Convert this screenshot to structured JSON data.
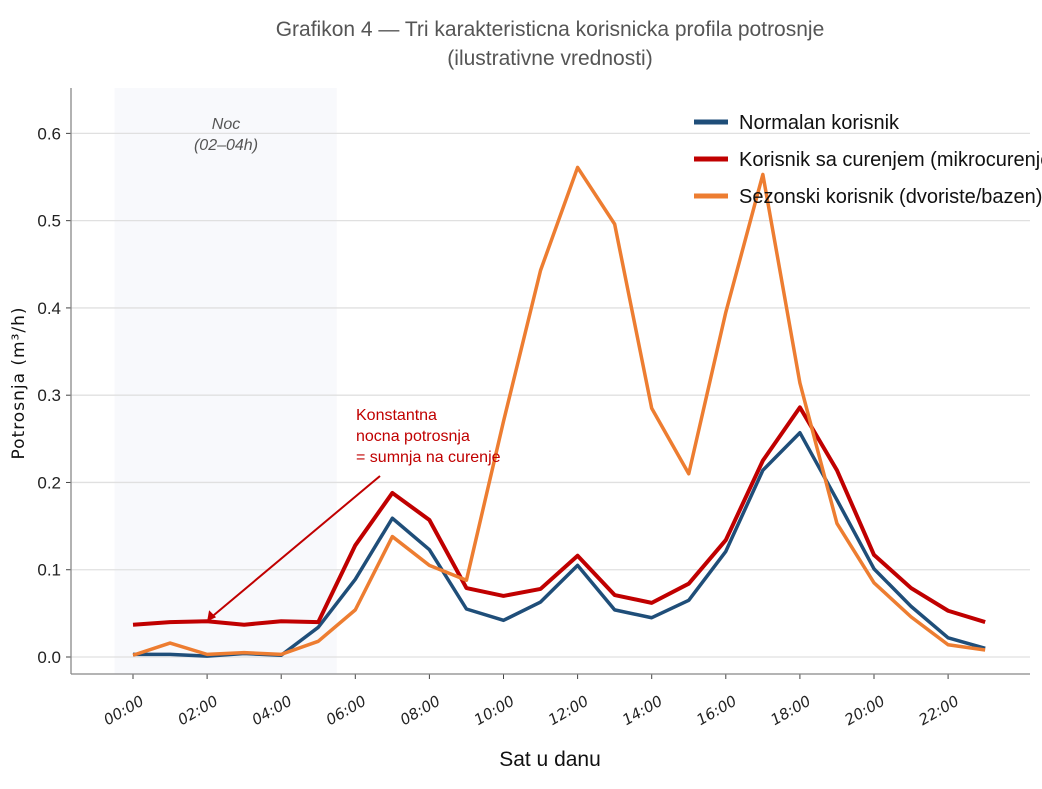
{
  "chart_data": {
    "type": "line",
    "title": "Grafikon 4 — Tri karakteristicna korisnicka profila potrosnje",
    "subtitle": "(ilustrativne vrednosti)",
    "xlabel": "Sat u danu",
    "ylabel": "Potrosnja (m³/h)",
    "x": [
      0,
      1,
      2,
      3,
      4,
      5,
      6,
      7,
      8,
      9,
      10,
      11,
      12,
      13,
      14,
      15,
      16,
      17,
      18,
      19,
      20,
      21,
      22,
      23
    ],
    "xlim": [
      -1.7,
      24.2
    ],
    "ylim": [
      -0.02,
      0.65
    ],
    "x_ticks": [
      0,
      2,
      4,
      6,
      8,
      10,
      12,
      14,
      16,
      18,
      20,
      22
    ],
    "x_tick_labels": [
      "00:00",
      "02:00",
      "04:00",
      "06:00",
      "08:00",
      "10:00",
      "12:00",
      "14:00",
      "16:00",
      "18:00",
      "20:00",
      "22:00"
    ],
    "y_ticks": [
      0.0,
      0.1,
      0.2,
      0.3,
      0.4,
      0.5,
      0.6
    ],
    "y_tick_labels": [
      "0.0",
      "0.1",
      "0.2",
      "0.3",
      "0.4",
      "0.5",
      "0.6"
    ],
    "grid": "horizontal",
    "legend_position": "top-right",
    "series": [
      {
        "name": "Normalan korisnik",
        "color": "#1f4e79",
        "values": [
          0.003,
          0.003,
          0.001,
          0.004,
          0.002,
          0.034,
          0.089,
          0.159,
          0.123,
          0.055,
          0.042,
          0.063,
          0.105,
          0.054,
          0.045,
          0.065,
          0.121,
          0.214,
          0.257,
          0.18,
          0.101,
          0.058,
          0.022,
          0.01
        ]
      },
      {
        "name": "Korisnik sa curenjem (mikrocurenje)",
        "color": "#c00000",
        "values": [
          0.037,
          0.04,
          0.041,
          0.037,
          0.041,
          0.04,
          0.128,
          0.188,
          0.157,
          0.079,
          0.07,
          0.078,
          0.116,
          0.071,
          0.062,
          0.084,
          0.134,
          0.225,
          0.286,
          0.214,
          0.117,
          0.079,
          0.053,
          0.04
        ]
      },
      {
        "name": "Sezonski korisnik (dvoriste/bazen)",
        "color": "#ed7d31",
        "values": [
          0.002,
          0.016,
          0.003,
          0.005,
          0.003,
          0.018,
          0.054,
          0.138,
          0.105,
          0.088,
          0.27,
          0.443,
          0.561,
          0.496,
          0.285,
          0.21,
          0.395,
          0.553,
          0.314,
          0.153,
          0.085,
          0.046,
          0.014,
          0.008
        ]
      }
    ],
    "shaded_region": {
      "x_range": [
        -0.5,
        5.5
      ],
      "label_line1": "Noc",
      "label_line2": "(02–04h)",
      "color": "#f8f9fc"
    },
    "annotation": {
      "lines": [
        "Konstantna",
        "nocna potrosnja",
        "= sumnja na curenje"
      ],
      "points_to": [
        2,
        0.041
      ],
      "color": "#c00000"
    }
  }
}
